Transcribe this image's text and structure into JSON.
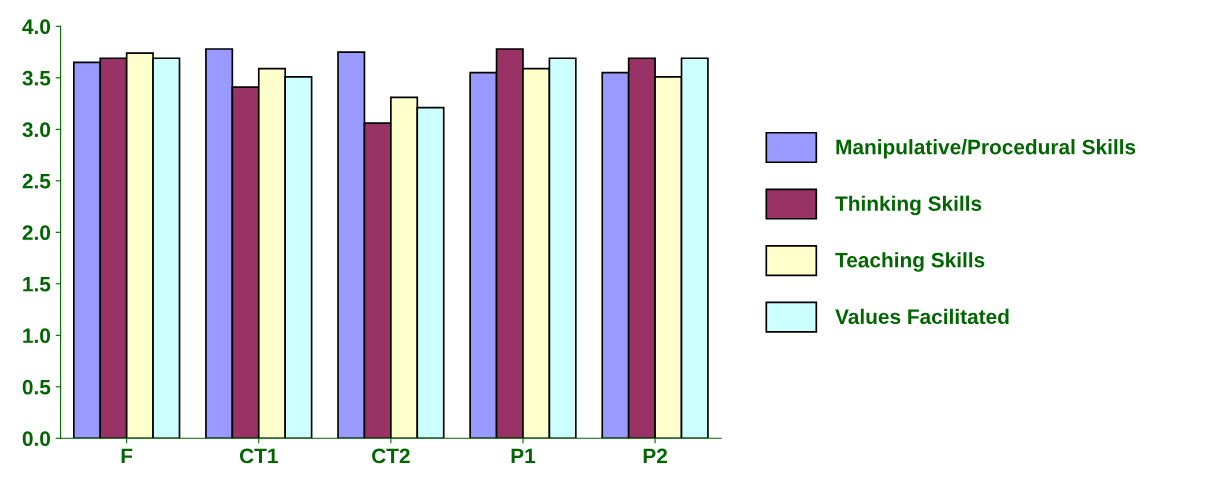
{
  "chart_data": {
    "type": "bar",
    "categories": [
      "F",
      "CT1",
      "CT2",
      "P1",
      "P2"
    ],
    "series": [
      {
        "name": "Manipulative/Procedural Skills",
        "color": "#9999ff",
        "values": [
          3.65,
          3.78,
          3.75,
          3.55,
          3.55
        ]
      },
      {
        "name": "Thinking Skills",
        "color": "#993366",
        "values": [
          3.69,
          3.41,
          3.06,
          3.78,
          3.69
        ]
      },
      {
        "name": "Teaching Skills",
        "color": "#ffffcc",
        "values": [
          3.74,
          3.59,
          3.31,
          3.59,
          3.51
        ]
      },
      {
        "name": "Values Facilitated",
        "color": "#ccffff",
        "values": [
          3.69,
          3.51,
          3.21,
          3.69,
          3.69
        ]
      }
    ],
    "ylim": [
      0,
      4
    ],
    "yticks": [
      {
        "value": 0,
        "label": "0.0"
      },
      {
        "value": 0.5,
        "label": "0.5"
      },
      {
        "value": 1,
        "label": "1.0"
      },
      {
        "value": 1.5,
        "label": "1.5"
      },
      {
        "value": 2,
        "label": "2.0"
      },
      {
        "value": 2.5,
        "label": "2.5"
      },
      {
        "value": 3,
        "label": "3.0"
      },
      {
        "value": 3.5,
        "label": "3.5"
      },
      {
        "value": 4,
        "label": "4.0"
      }
    ],
    "grid": false,
    "legend": "right"
  }
}
